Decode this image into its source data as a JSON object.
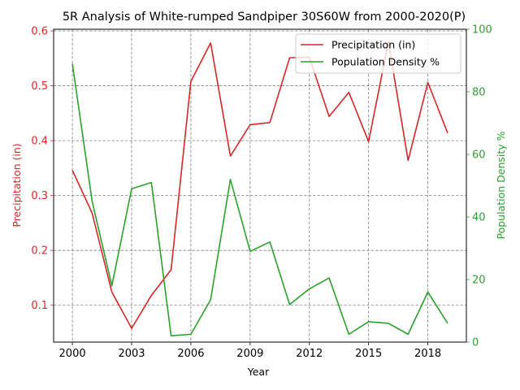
{
  "chart_data": {
    "type": "line",
    "title": "5R Analysis of White-rumped Sandpiper 30S60W from 2000-2020(P)",
    "xlabel": "Year",
    "x": [
      2000,
      2001,
      2002,
      2003,
      2004,
      2005,
      2006,
      2007,
      2008,
      2009,
      2010,
      2011,
      2012,
      2013,
      2014,
      2015,
      2016,
      2017,
      2018,
      2019
    ],
    "x_ticks": [
      "2000",
      "2003",
      "2006",
      "2009",
      "2012",
      "2015",
      "2018"
    ],
    "xlim": [
      1999.05,
      2019.95
    ],
    "grid": true,
    "legend_position": "top-right",
    "axes": {
      "left": {
        "label": "Precipitation (in)",
        "color": "#d62728",
        "ylim": [
          0.033,
          0.603
        ],
        "ticks": [
          "0.1",
          "0.2",
          "0.3",
          "0.4",
          "0.5",
          "0.6"
        ]
      },
      "right": {
        "label": "Population Density %",
        "color": "#2ca02c",
        "ylim": [
          0,
          100
        ],
        "ticks": [
          "0",
          "20",
          "40",
          "60",
          "80",
          "100"
        ]
      }
    },
    "series": [
      {
        "name": "Precipitation (in)",
        "axis": "left",
        "color": "#d62728",
        "values": [
          0.346,
          0.268,
          0.124,
          0.058,
          0.118,
          0.165,
          0.508,
          0.578,
          0.372,
          0.429,
          0.433,
          0.551,
          0.552,
          0.444,
          0.488,
          0.398,
          0.58,
          0.364,
          0.506,
          0.414
        ]
      },
      {
        "name": "Population Density %",
        "axis": "right",
        "color": "#2ca02c",
        "values": [
          89.0,
          45.0,
          18.0,
          49.0,
          51.0,
          2.0,
          2.5,
          13.5,
          52.0,
          29.0,
          32.0,
          12.0,
          17.0,
          20.5,
          2.5,
          6.5,
          6.0,
          2.5,
          16.0,
          6.0
        ]
      }
    ]
  }
}
